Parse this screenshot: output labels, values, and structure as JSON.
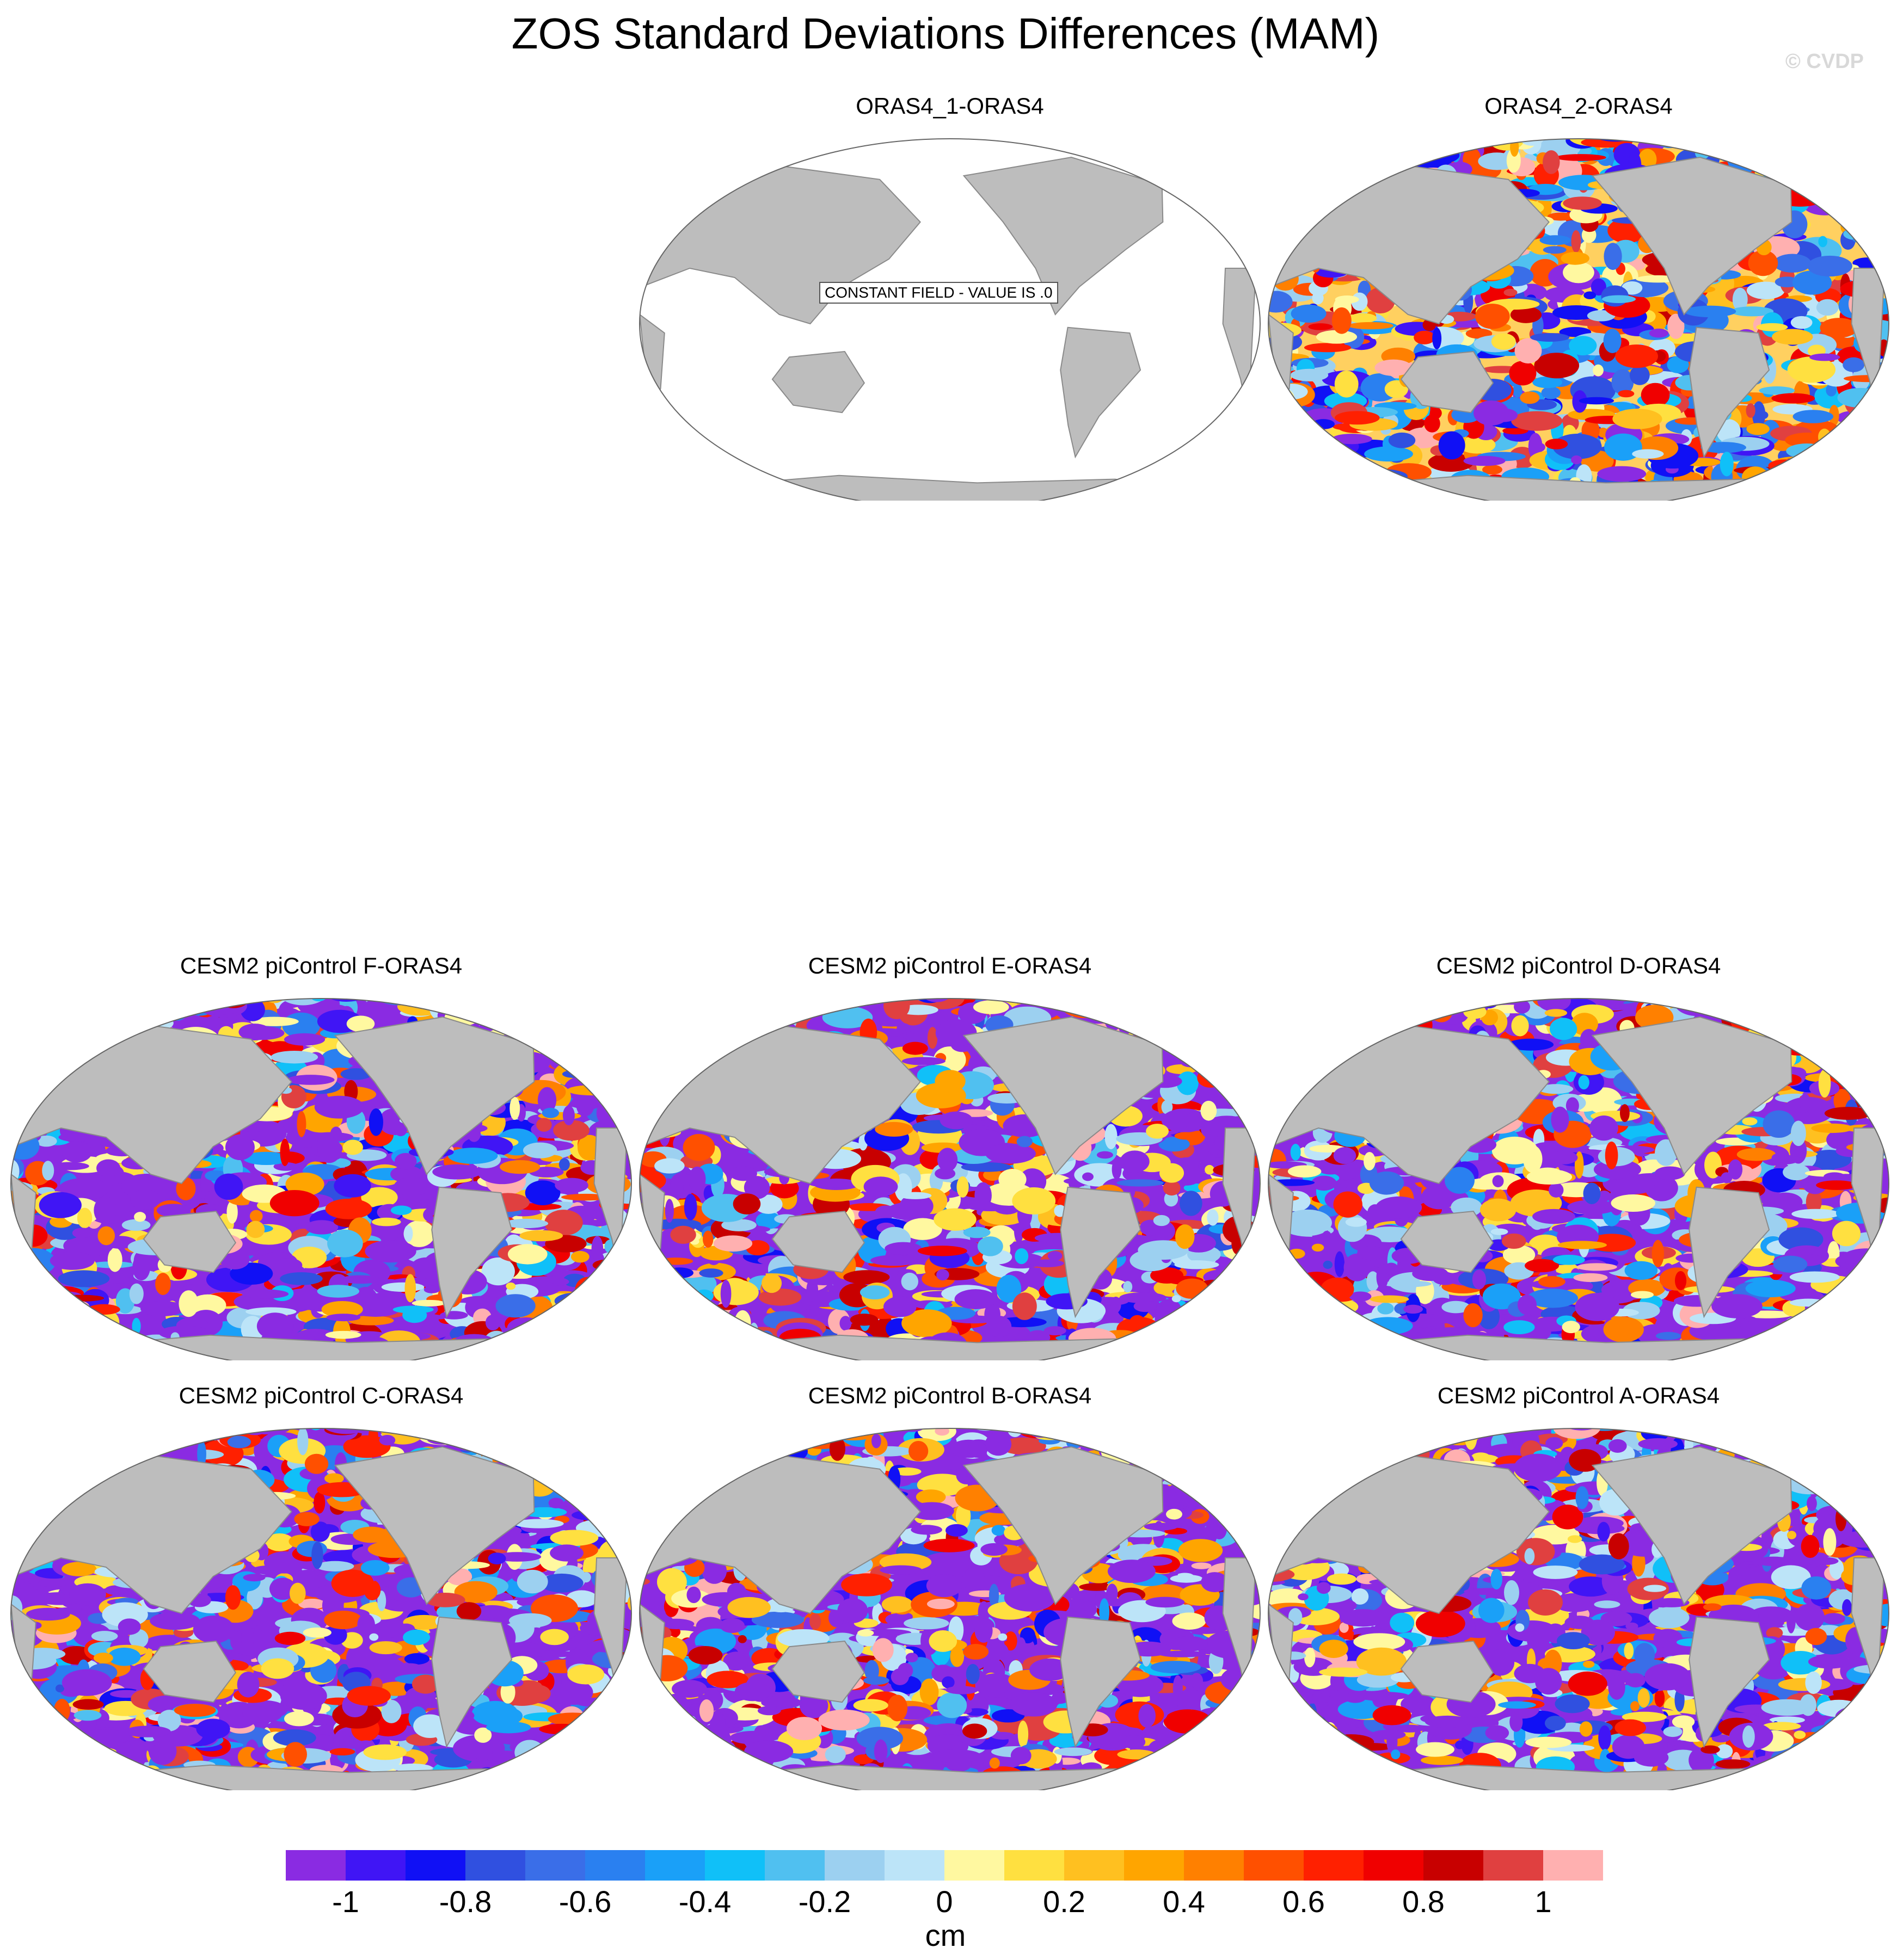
{
  "title": "ZOS Standard Deviations Differences (MAM)",
  "watermark": "© CVDP",
  "panels": [
    {
      "title": "ORAS4_1-ORAS4",
      "field": "constant",
      "message": "CONSTANT FIELD - VALUE IS .0"
    },
    {
      "title": "ORAS4_2-ORAS4",
      "field": "oras"
    },
    {
      "title": "CESM2 piControl F-ORAS4",
      "field": "cesm"
    },
    {
      "title": "CESM2 piControl E-ORAS4",
      "field": "cesm"
    },
    {
      "title": "CESM2 piControl D-ORAS4",
      "field": "cesm"
    },
    {
      "title": "CESM2 piControl C-ORAS4",
      "field": "cesm"
    },
    {
      "title": "CESM2 piControl B-ORAS4",
      "field": "cesm"
    },
    {
      "title": "CESM2 piControl A-ORAS4",
      "field": "cesm"
    }
  ],
  "colorbar": {
    "units": "cm",
    "colors": [
      "#8a2be2",
      "#4015f5",
      "#1010f5",
      "#3050e0",
      "#3a6ee8",
      "#2a80f0",
      "#1aa0f8",
      "#10c0f8",
      "#50c0f0",
      "#9cd0f0",
      "#bce4f8",
      "#fff8a0",
      "#ffe040",
      "#ffc020",
      "#ffa500",
      "#ff8000",
      "#ff5000",
      "#ff2000",
      "#f00000",
      "#c80000",
      "#e04040",
      "#ffb0b0"
    ],
    "labels": [
      "-1",
      "-0.8",
      "-0.6",
      "-0.4",
      "-0.2",
      "0",
      "0.2",
      "0.4",
      "0.6",
      "0.8",
      "1"
    ]
  },
  "colors": {
    "land": "#bdbdbd",
    "ocean_constant": "#ffffff"
  }
}
